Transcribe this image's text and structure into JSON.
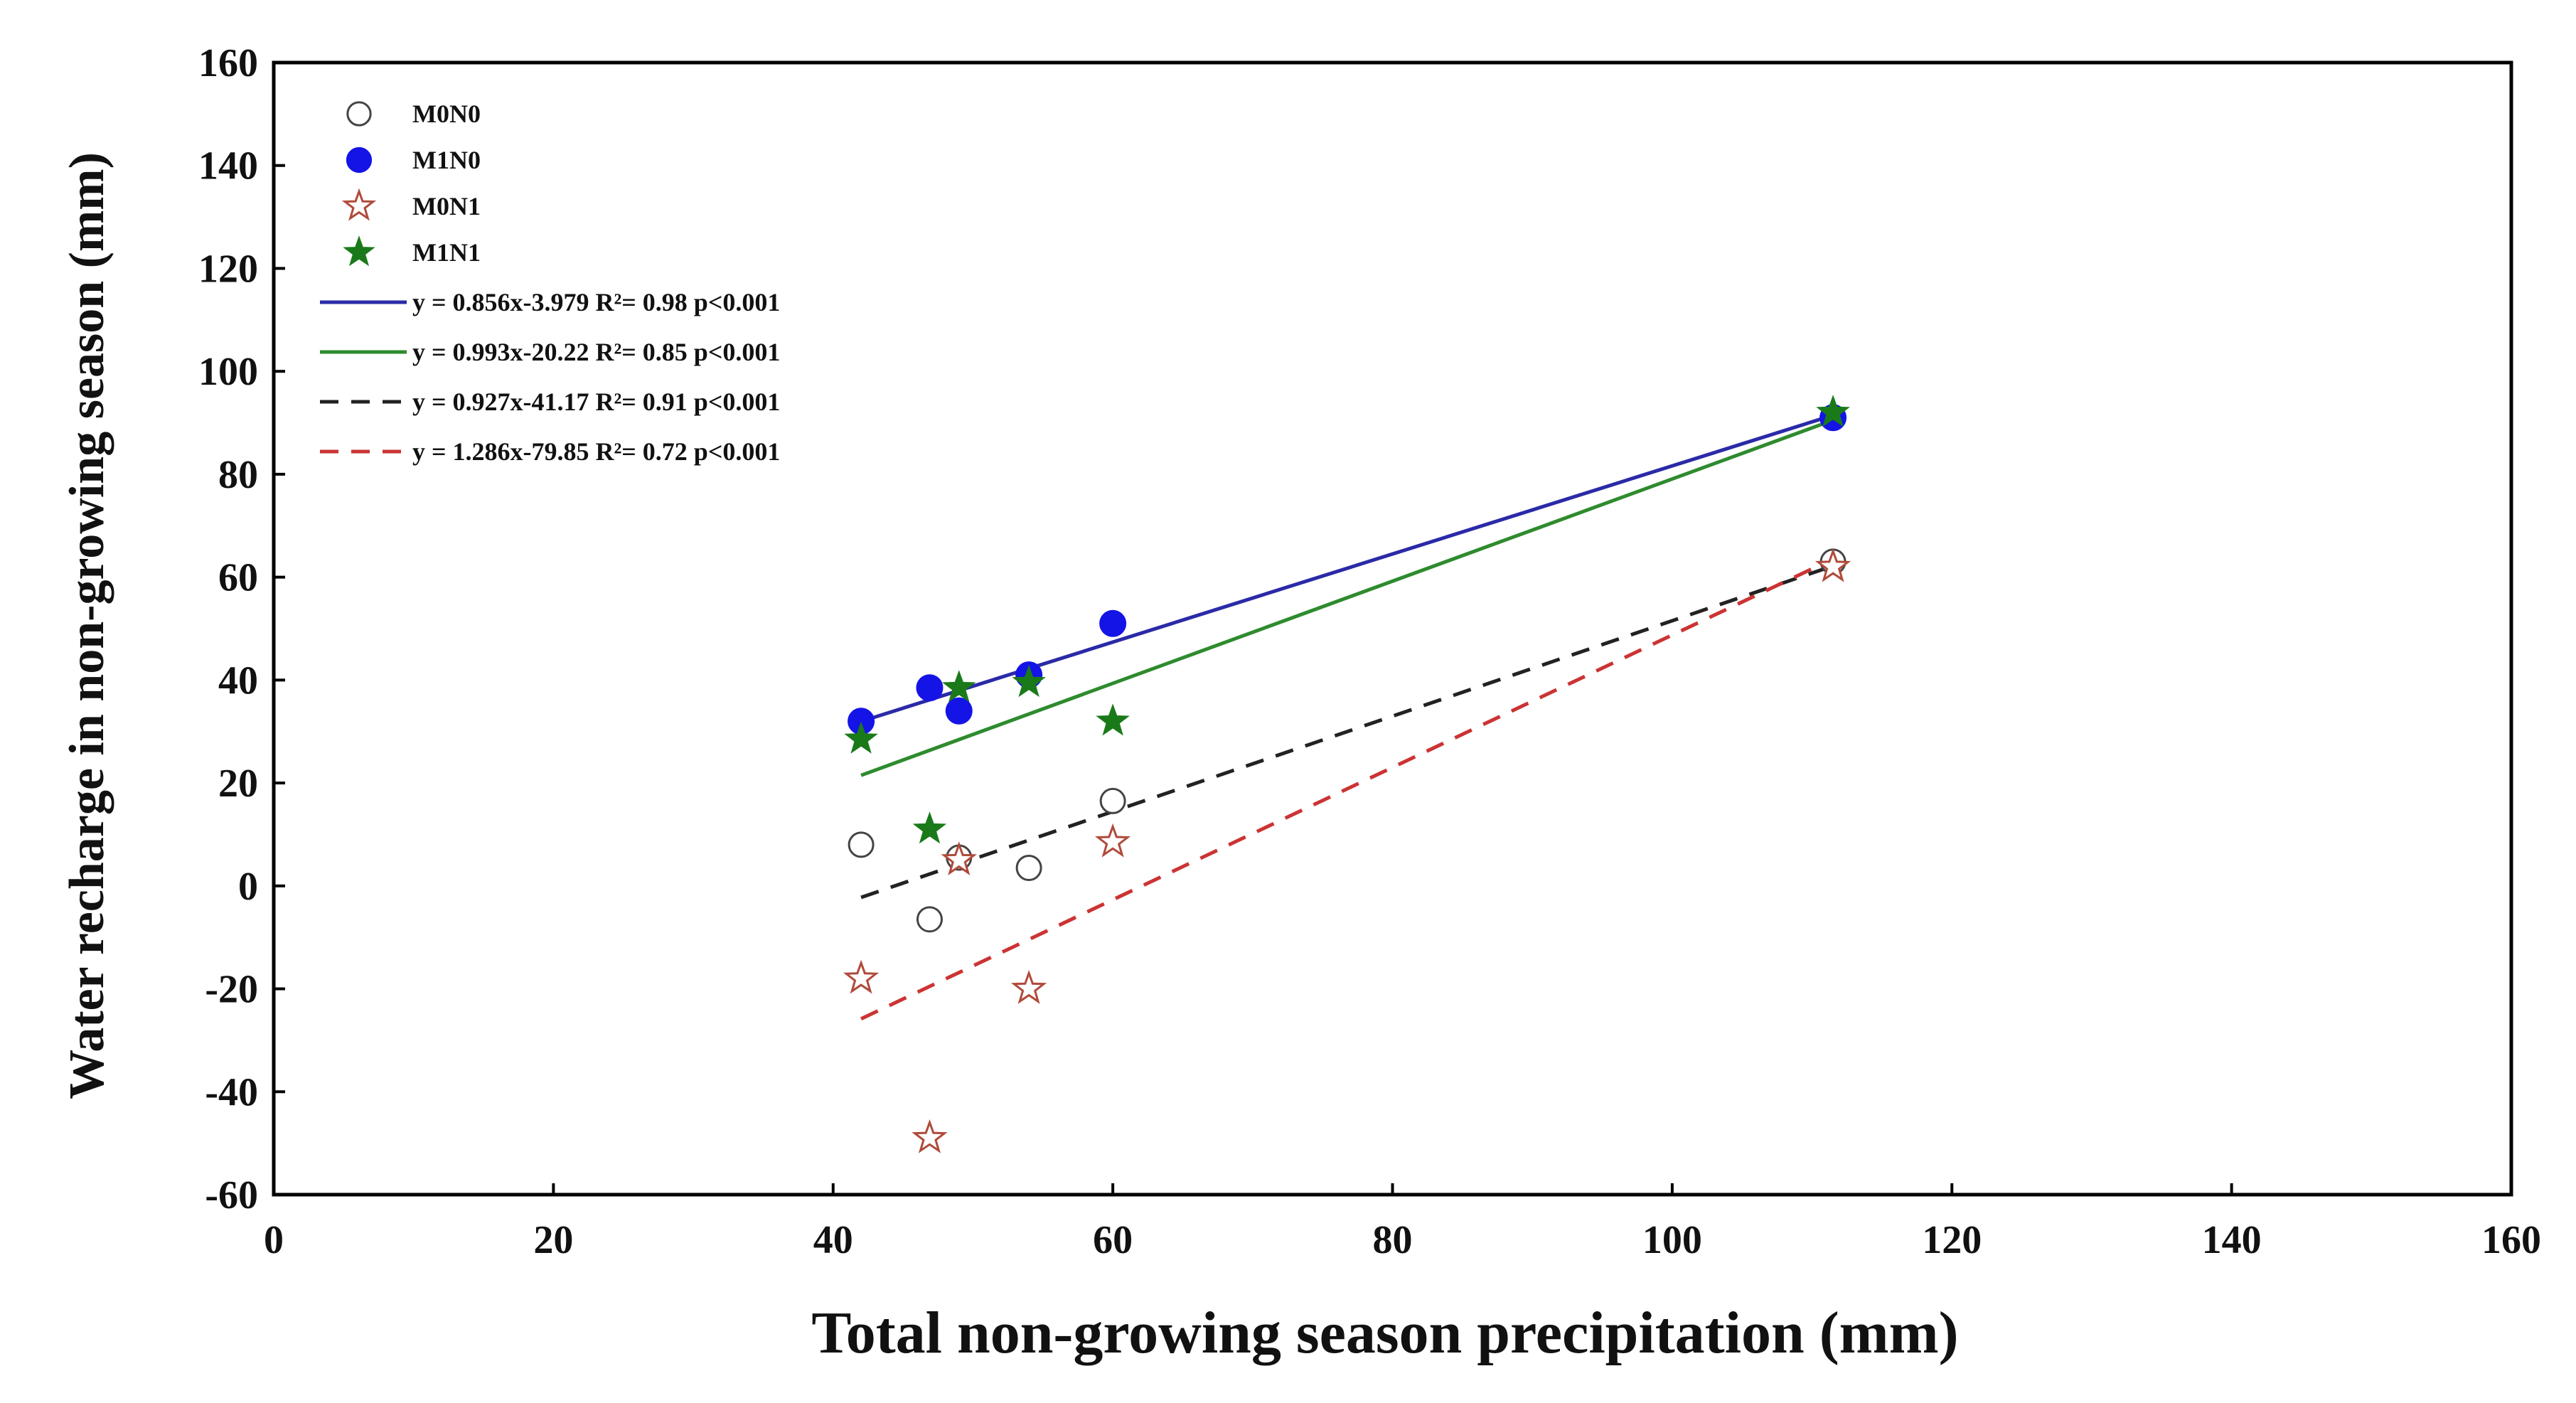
{
  "chart_data": {
    "type": "scatter",
    "xlabel": "Total non-growing season precipitation (mm)",
    "ylabel": "Water recharge in non-growing season (mm)",
    "xlim": [
      0,
      160
    ],
    "ylim": [
      -60,
      160
    ],
    "xticks": [
      "0",
      "20",
      "40",
      "60",
      "80",
      "100",
      "120",
      "140",
      "160"
    ],
    "yticks": [
      "-60",
      "-40",
      "-20",
      "0",
      "20",
      "40",
      "60",
      "80",
      "100",
      "120",
      "140",
      "160"
    ],
    "series": [
      {
        "name": "M0N0",
        "marker": "open-circle",
        "color": "#444444",
        "points": [
          [
            42,
            8
          ],
          [
            46.9,
            -6.5
          ],
          [
            49,
            5.5
          ],
          [
            54,
            3.5
          ],
          [
            60,
            16.5
          ],
          [
            111.5,
            63
          ]
        ]
      },
      {
        "name": "M1N0",
        "marker": "filled-circle",
        "color": "#1414e6",
        "points": [
          [
            42,
            32
          ],
          [
            46.9,
            38.5
          ],
          [
            49,
            34
          ],
          [
            54,
            41
          ],
          [
            60,
            51
          ],
          [
            111.5,
            91
          ]
        ]
      },
      {
        "name": "M0N1",
        "marker": "open-star",
        "color": "#b04a3a",
        "points": [
          [
            42,
            -18
          ],
          [
            46.9,
            -49
          ],
          [
            49,
            5
          ],
          [
            54,
            -20
          ],
          [
            60,
            8.5
          ],
          [
            111.5,
            62
          ]
        ]
      },
      {
        "name": "M1N1",
        "marker": "filled-star",
        "color": "#1a7a1a",
        "points": [
          [
            42,
            28.5
          ],
          [
            46.9,
            11
          ],
          [
            49,
            38.5
          ],
          [
            54,
            39.5
          ],
          [
            60,
            32
          ],
          [
            111.5,
            92
          ]
        ]
      }
    ],
    "fits": [
      {
        "label": "y = 0.856x-3.979 R²= 0.98 p<0.001",
        "slope": 0.856,
        "intercept": -3.979,
        "color": "#2a2aa8",
        "dash": "solid",
        "x_range": [
          42,
          111.5
        ]
      },
      {
        "label": "y = 0.993x-20.22 R²= 0.85 p<0.001",
        "slope": 0.993,
        "intercept": -20.22,
        "color": "#2e8b2e",
        "dash": "solid",
        "x_range": [
          42,
          111.5
        ]
      },
      {
        "label": "y = 0.927x-41.17 R²= 0.91 p<0.001",
        "slope": 0.927,
        "intercept": -41.17,
        "color": "#222222",
        "dash": "dashed",
        "x_range": [
          42,
          111.5
        ]
      },
      {
        "label": "y = 1.286x-79.85 R²= 0.72 p<0.001",
        "slope": 1.286,
        "intercept": -79.85,
        "color": "#cc3333",
        "dash": "dashed",
        "x_range": [
          42,
          111.5
        ]
      }
    ],
    "legend_position": "top-left"
  }
}
